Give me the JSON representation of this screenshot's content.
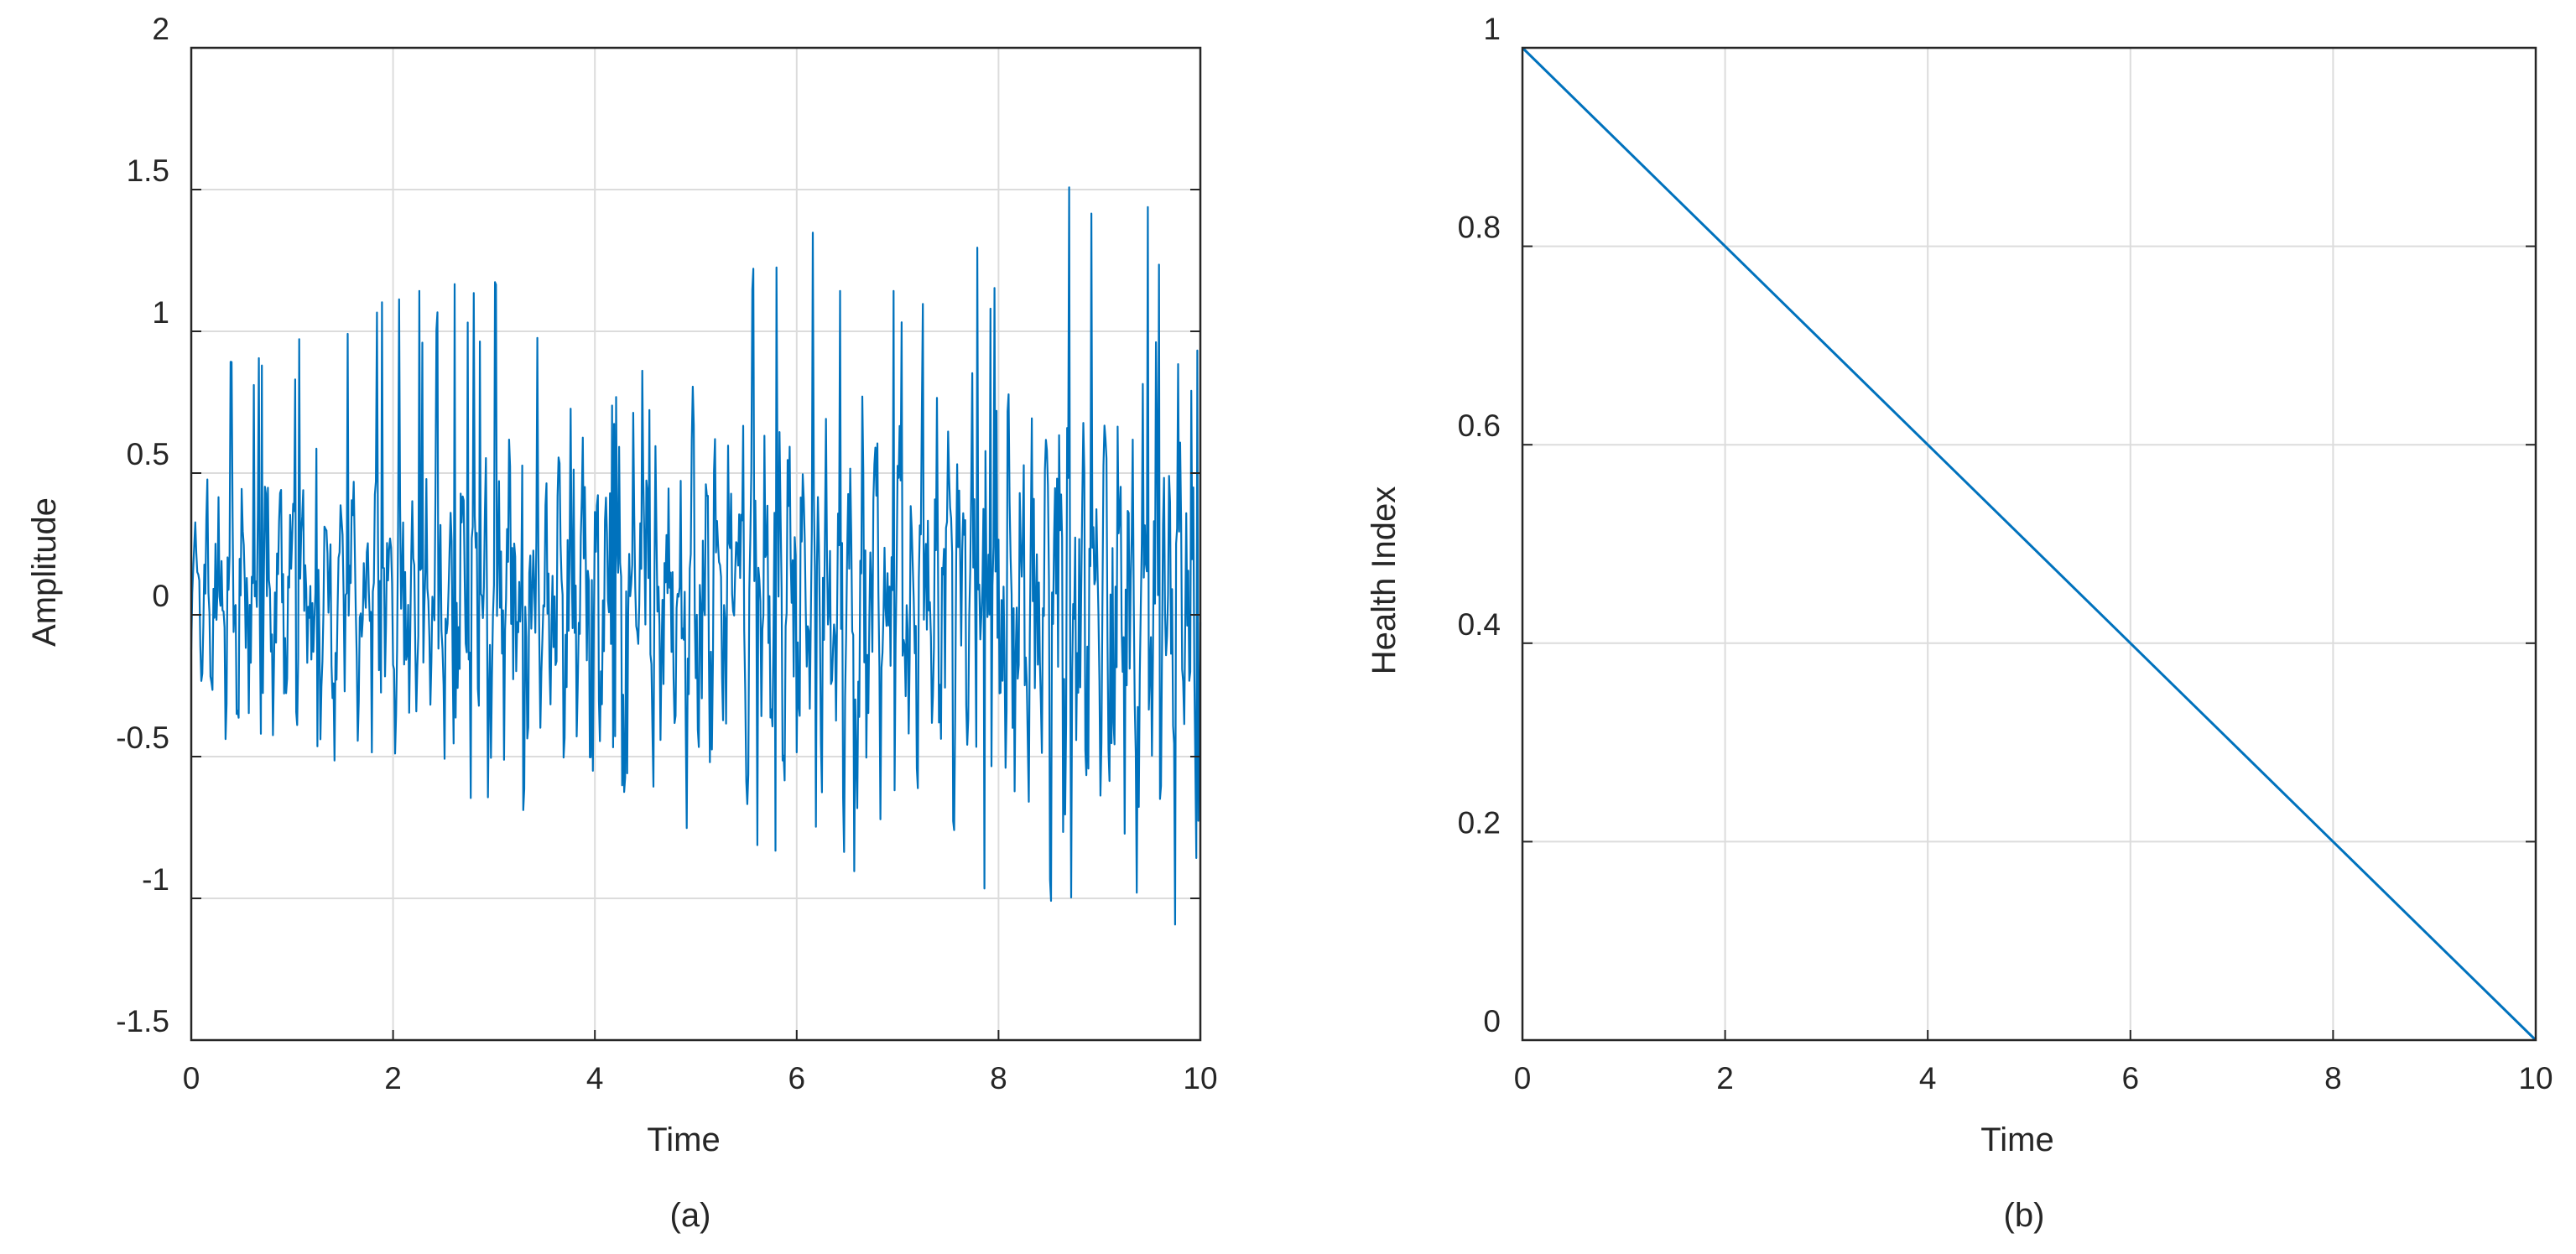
{
  "chart_data": [
    {
      "type": "line",
      "panel": "(a)",
      "title": "",
      "xlabel": "Time",
      "ylabel": "Amplitude",
      "xlim": [
        0,
        10
      ],
      "ylim": [
        -1.5,
        2
      ],
      "xticks": [
        "0",
        "2",
        "4",
        "6",
        "8",
        "10"
      ],
      "yticks": [
        "-1.5",
        "-1",
        "-0.5",
        "0",
        "0.5",
        "1",
        "1.5",
        "2"
      ],
      "grid": true,
      "line_color": "#0072BD",
      "signal": {
        "description": "oscillatory vibration signal with amplitude growing over time",
        "x_range": [
          0,
          10
        ],
        "samples": 1000,
        "envelope_points": [
          {
            "x": 0,
            "max": 0.85,
            "min": -0.55
          },
          {
            "x": 2,
            "max": 1.15,
            "min": -0.5
          },
          {
            "x": 3,
            "max": 1.2,
            "min": -0.78
          },
          {
            "x": 4,
            "max": 0.7,
            "min": -0.6
          },
          {
            "x": 5,
            "max": 1.05,
            "min": -0.8
          },
          {
            "x": 6,
            "max": 1.4,
            "min": -0.88
          },
          {
            "x": 7,
            "max": 1.2,
            "min": -0.95
          },
          {
            "x": 8,
            "max": 1.35,
            "min": -1.0
          },
          {
            "x": 8.8,
            "max": 1.57,
            "min": -1.1
          },
          {
            "x": 9.6,
            "max": 1.5,
            "min": -1.25
          },
          {
            "x": 10,
            "max": 0.96,
            "min": -1.1
          }
        ]
      }
    },
    {
      "type": "line",
      "panel": "(b)",
      "title": "",
      "xlabel": "Time",
      "ylabel": "Health Index",
      "xlim": [
        0,
        10
      ],
      "ylim": [
        0,
        1
      ],
      "xticks": [
        "0",
        "2",
        "4",
        "6",
        "8",
        "10"
      ],
      "yticks": [
        "0",
        "0.2",
        "0.4",
        "0.6",
        "0.8",
        "1"
      ],
      "grid": true,
      "line_color": "#0072BD",
      "series": [
        {
          "x": [
            0,
            2,
            4,
            6,
            8,
            10
          ],
          "y": [
            1,
            0.8,
            0.6,
            0.4,
            0.2,
            0
          ]
        }
      ]
    }
  ],
  "captions": {
    "a": "(a)",
    "b": "(b)"
  }
}
